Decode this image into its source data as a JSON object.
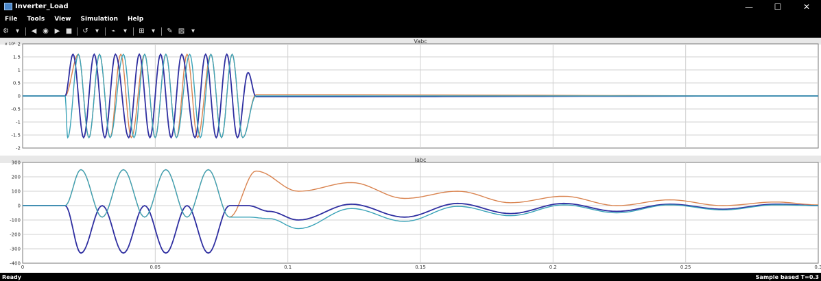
{
  "window": {
    "title": "Inverter_Load",
    "minimize": "—",
    "maximize": "☐",
    "close": "✕"
  },
  "menu": [
    "File",
    "Tools",
    "View",
    "Simulation",
    "Help"
  ],
  "toolbar_icons": [
    "settings-icon",
    "print-icon",
    "zoom-icon",
    "run-icon",
    "stop-icon",
    "restore-icon",
    "cursor-icon",
    "autoscale-icon",
    "highlight-icon",
    "style-icon"
  ],
  "status": {
    "left": "Ready",
    "right": "Sample based  T=0.3"
  },
  "colors": {
    "phase_a": "#d9834f",
    "phase_b": "#2e2ea0",
    "phase_c": "#3aa3b8"
  },
  "chart_data": [
    {
      "type": "line",
      "title": "Vabc",
      "exponent_label": "x 10⁴",
      "xlim": [
        0,
        0.3
      ],
      "ylim": [
        -2,
        2
      ],
      "yticks": [
        "2",
        "1.5",
        "1",
        "0.5",
        "0",
        "-0.5",
        "-1",
        "-1.5",
        "-2"
      ],
      "xticks": [
        "0",
        "0.05",
        "0.1",
        "0.15",
        "0.2",
        "0.25",
        "0.3"
      ],
      "grid": true,
      "series": [
        {
          "color": "#d9834f",
          "x": [
            0,
            0.016,
            0.021,
            0.025,
            0.029,
            0.033,
            0.037,
            0.041,
            0.046,
            0.05,
            0.054,
            0.058,
            0.062,
            0.066,
            0.071,
            0.075,
            0.079,
            0.083,
            0.088,
            0.3
          ],
          "y": [
            0,
            0,
            1.6,
            -1.6,
            1.6,
            -1.6,
            1.6,
            -1.6,
            1.6,
            -1.6,
            1.6,
            -1.6,
            1.6,
            -1.6,
            1.6,
            -1.6,
            1.6,
            -1.6,
            0.05,
            0
          ]
        },
        {
          "color": "#2e2ea0",
          "x": [
            0,
            0.016,
            0.019,
            0.023,
            0.027,
            0.031,
            0.035,
            0.04,
            0.044,
            0.048,
            0.052,
            0.056,
            0.06,
            0.065,
            0.069,
            0.073,
            0.077,
            0.081,
            0.085,
            0.088,
            0.3
          ],
          "y": [
            0,
            0,
            1.6,
            -1.6,
            1.6,
            -1.6,
            1.6,
            -1.6,
            1.6,
            -1.6,
            1.6,
            -1.6,
            1.6,
            -1.6,
            1.6,
            -1.6,
            1.6,
            -1.6,
            0.9,
            -0.03,
            0
          ]
        },
        {
          "color": "#3aa3b8",
          "x": [
            0,
            0.016,
            0.017,
            0.021,
            0.025,
            0.029,
            0.033,
            0.038,
            0.042,
            0.046,
            0.05,
            0.054,
            0.058,
            0.063,
            0.067,
            0.071,
            0.075,
            0.079,
            0.083,
            0.088,
            0.3
          ],
          "y": [
            0,
            0,
            -1.6,
            1.6,
            -1.6,
            1.6,
            -1.6,
            1.6,
            -1.6,
            1.6,
            -1.6,
            1.6,
            -1.6,
            1.6,
            -1.6,
            1.6,
            -1.6,
            1.6,
            -1.6,
            0,
            0
          ]
        }
      ]
    },
    {
      "type": "line",
      "title": "Iabc",
      "xlim": [
        0,
        0.3
      ],
      "ylim": [
        -400,
        300
      ],
      "yticks": [
        "300",
        "200",
        "100",
        "0",
        "-100",
        "-200",
        "-300",
        "-400"
      ],
      "xticks": [
        "0",
        "0.05",
        "0.1",
        "0.15",
        "0.2",
        "0.25",
        "0.3"
      ],
      "grid": true,
      "series": [
        {
          "color": "#d9834f",
          "x": [
            0,
            0.016,
            0.022,
            0.03,
            0.038,
            0.046,
            0.054,
            0.062,
            0.07,
            0.078,
            0.088,
            0.104,
            0.124,
            0.144,
            0.164,
            0.184,
            0.204,
            0.224,
            0.244,
            0.264,
            0.284,
            0.3
          ],
          "y": [
            0,
            0,
            250,
            -80,
            250,
            -80,
            250,
            -80,
            250,
            -80,
            240,
            100,
            160,
            50,
            100,
            20,
            65,
            0,
            40,
            0,
            25,
            5
          ]
        },
        {
          "color": "#2e2ea0",
          "x": [
            0,
            0.016,
            0.022,
            0.03,
            0.038,
            0.046,
            0.054,
            0.062,
            0.07,
            0.078,
            0.085,
            0.093,
            0.104,
            0.124,
            0.144,
            0.164,
            0.184,
            0.204,
            0.224,
            0.244,
            0.264,
            0.284,
            0.3
          ],
          "y": [
            0,
            0,
            -330,
            0,
            -330,
            0,
            -330,
            0,
            -330,
            0,
            0,
            -40,
            -100,
            10,
            -80,
            15,
            -55,
            15,
            -40,
            10,
            -25,
            10,
            0
          ]
        },
        {
          "color": "#3aa3b8",
          "x": [
            0,
            0.016,
            0.022,
            0.03,
            0.038,
            0.046,
            0.054,
            0.062,
            0.07,
            0.078,
            0.085,
            0.093,
            0.104,
            0.124,
            0.144,
            0.164,
            0.184,
            0.204,
            0.224,
            0.244,
            0.264,
            0.284,
            0.3
          ],
          "y": [
            0,
            0,
            250,
            -80,
            250,
            -80,
            250,
            -80,
            250,
            -80,
            -80,
            -90,
            -160,
            -20,
            -110,
            -5,
            -70,
            5,
            -50,
            5,
            -30,
            5,
            0
          ]
        }
      ]
    }
  ]
}
